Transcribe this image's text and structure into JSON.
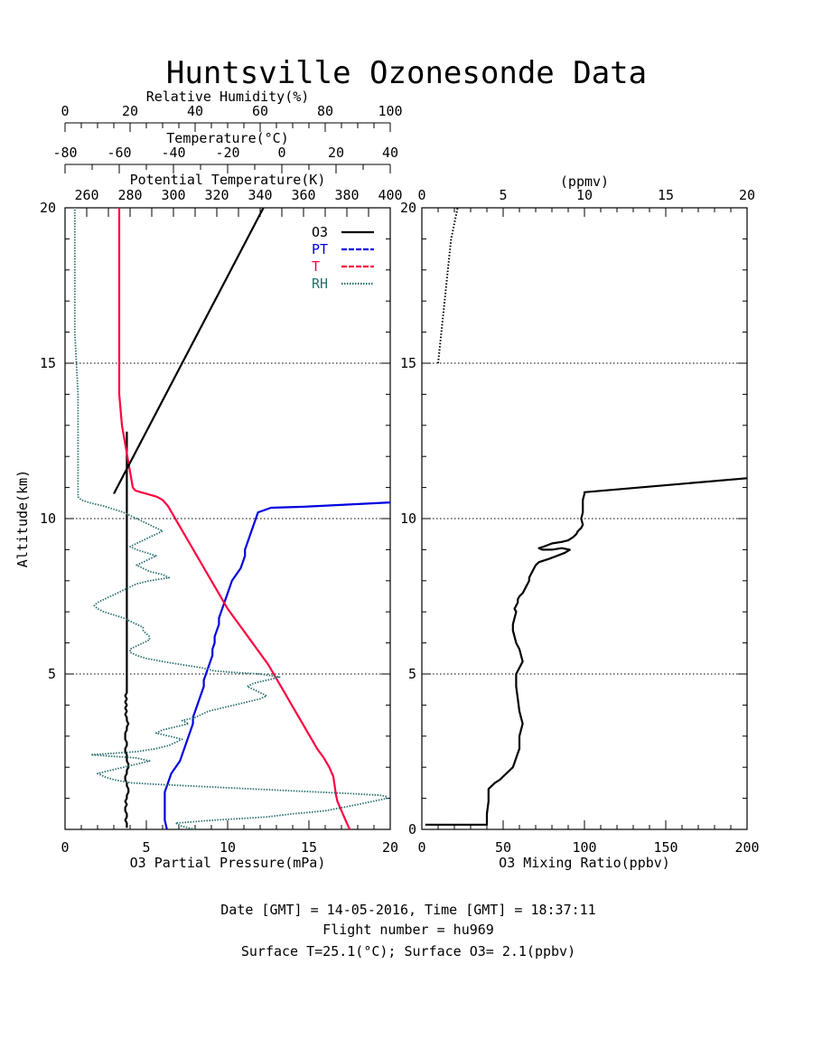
{
  "title": "Huntsville Ozonesonde Data",
  "footer": {
    "line1": "Date [GMT] = 14-05-2016,  Time [GMT] = 18:37:11",
    "line2": "Flight number = hu969",
    "line3": "Surface T=25.1(°C); Surface O3= 2.1(ppbv)"
  },
  "colors": {
    "o3": "#000000",
    "pt": "#0000e0",
    "t": "#ff0040",
    "rh": "#2a7070"
  },
  "chart_data": [
    {
      "type": "line",
      "panel": "left",
      "ylabel": "Altitude(km)",
      "ylim": [
        0,
        20
      ],
      "yticks": [
        "5",
        "10",
        "15",
        "20"
      ],
      "grid_y": [
        5,
        10,
        15
      ],
      "legend": [
        "O3",
        "PT",
        "T",
        "RH"
      ],
      "legend_position": "top-right",
      "axes": {
        "o3": {
          "label": "O3 Partial Pressure(mPa)",
          "lim": [
            0,
            20
          ],
          "ticks": [
            "0",
            "5",
            "10",
            "15",
            "20"
          ]
        },
        "rh": {
          "label": "Relative Humidity(%)",
          "lim": [
            0,
            100
          ],
          "ticks": [
            "0",
            "20",
            "40",
            "60",
            "80",
            "100"
          ]
        },
        "t": {
          "label": "Temperature(°C)",
          "lim": [
            -80,
            40
          ],
          "ticks": [
            "-80",
            "-60",
            "-40",
            "-20",
            "0",
            "20",
            "40"
          ]
        },
        "pt": {
          "label": "Potential Temperature(K)",
          "lim": [
            250,
            400
          ],
          "ticks": [
            "260",
            "280",
            "300",
            "320",
            "340",
            "360",
            "380",
            "400"
          ]
        }
      },
      "series": [
        {
          "name": "O3",
          "axis": "o3",
          "x": [
            3.8,
            3.8,
            3.8,
            3.7,
            3.8,
            3.8,
            3.7,
            3.7,
            3.8,
            3.7,
            3.8,
            3.8,
            3.9,
            3.9,
            3.8,
            3.8,
            3.7,
            3.7,
            3.8,
            3.8,
            3.9,
            3.9,
            3.8,
            3.8,
            3.8,
            3.7,
            3.7,
            3.8,
            3.8,
            3.7,
            3.7,
            3.7,
            3.8,
            3.8,
            3.9,
            3.8,
            3.8,
            3.7,
            3.8,
            3.7,
            3.8,
            3.7,
            3.8,
            3.7,
            3.8,
            3.8,
            3.8,
            3.8,
            3.8,
            3.8,
            3.8,
            3.8,
            3.8,
            3.8,
            3.8,
            3.8,
            3.8,
            3.8,
            3.8,
            3.8,
            3.8,
            3.8,
            3.8,
            3.8,
            3.8,
            3.8,
            3.8,
            3.8,
            3.8,
            3.8,
            3.8,
            3.8,
            3.8,
            3.8,
            3.8,
            3.8,
            3.8,
            3.8,
            3.8,
            3.8,
            3.8,
            3.8,
            3.8,
            3.8,
            3.8,
            3.8,
            3.8,
            3.8,
            3.8,
            3.8,
            3.8,
            3.8,
            3.8,
            3.8,
            3.8,
            3.8,
            3.8,
            3.8,
            3.8,
            3.8,
            3.8,
            3.8,
            3.8,
            3.8,
            3.8,
            3.8,
            3.8,
            3.8,
            3.8,
            3.8,
            3.8,
            3.8,
            3.8,
            3.8,
            3.8,
            3.8,
            3.8,
            3.8,
            3.8,
            3.8,
            3.8,
            3.8,
            3.8,
            3.8,
            3.8,
            3.8,
            3.8,
            3.8,
            3.8
          ],
          "y": [
            0.05,
            0.1,
            0.2,
            0.3,
            0.4,
            0.5,
            0.6,
            0.7,
            0.8,
            0.9,
            1.0,
            1.1,
            1.2,
            1.3,
            1.4,
            1.5,
            1.6,
            1.7,
            1.8,
            1.9,
            2.0,
            2.1,
            2.2,
            2.3,
            2.4,
            2.5,
            2.6,
            2.7,
            2.8,
            2.9,
            3.0,
            3.1,
            3.2,
            3.3,
            3.4,
            3.5,
            3.6,
            3.7,
            3.8,
            3.9,
            4.0,
            4.1,
            4.2,
            4.3,
            4.4,
            4.5,
            4.6,
            4.7,
            4.8,
            4.9,
            5.0,
            5.1,
            5.2,
            5.3,
            5.4,
            5.5,
            5.6,
            5.7,
            5.8,
            5.9,
            6.0,
            6.1,
            6.2,
            6.3,
            6.4,
            6.5,
            6.6,
            6.7,
            6.8,
            6.9,
            7.0,
            7.1,
            7.2,
            7.3,
            7.4,
            7.5,
            7.6,
            7.7,
            7.8,
            7.9,
            8.0,
            8.1,
            8.2,
            8.3,
            8.4,
            8.5,
            8.6,
            8.7,
            8.8,
            8.9,
            9.0,
            9.1,
            9.2,
            9.3,
            9.4,
            9.5,
            9.6,
            9.7,
            9.8,
            9.9,
            10.0,
            10.1,
            10.2,
            10.3,
            10.4,
            10.5,
            10.6,
            10.7,
            10.8,
            10.9,
            11.0,
            11.1,
            11.2,
            11.3,
            11.4,
            11.5,
            11.6,
            11.7,
            11.8,
            11.9,
            12.0,
            12.1,
            12.2,
            12.3,
            12.4,
            12.5,
            12.6,
            12.7,
            12.8
          ]
        },
        {
          "name": "PT",
          "axis": "pt",
          "x": [
            297,
            296,
            296,
            296,
            296,
            297,
            298,
            299,
            301,
            303,
            304,
            305,
            306,
            307,
            308,
            309,
            309,
            310,
            311,
            312,
            313,
            314,
            314,
            315,
            316,
            317,
            318,
            318,
            319,
            319,
            320,
            321,
            321,
            322,
            323,
            324,
            325,
            326,
            327,
            329,
            331,
            332,
            333,
            333,
            334,
            335,
            336,
            337,
            338,
            339,
            345,
            360,
            380,
            400
          ],
          "y": [
            0,
            0.3,
            0.6,
            1.0,
            1.2,
            1.4,
            1.6,
            1.8,
            2.0,
            2.2,
            2.4,
            2.6,
            2.8,
            3.0,
            3.2,
            3.4,
            3.6,
            3.8,
            4.0,
            4.2,
            4.4,
            4.6,
            4.8,
            5.0,
            5.2,
            5.4,
            5.6,
            5.8,
            6.0,
            6.2,
            6.4,
            6.6,
            6.8,
            7.0,
            7.2,
            7.4,
            7.6,
            7.8,
            8.0,
            8.2,
            8.4,
            8.6,
            8.8,
            9.0,
            9.2,
            9.4,
            9.6,
            9.8,
            10.0,
            10.2,
            10.35,
            10.38,
            10.45,
            10.52
          ]
        },
        {
          "name": "T",
          "axis": "t",
          "x": [
            25.1,
            24.5,
            23.5,
            22.5,
            21.5,
            20.5,
            20,
            19.5,
            19,
            17.5,
            15.5,
            13,
            11,
            9,
            7,
            5,
            3,
            1,
            -1,
            -3,
            -5,
            -7.5,
            -10,
            -12.5,
            -15,
            -17.5,
            -20,
            -22,
            -24,
            -26,
            -28,
            -30,
            -32,
            -34,
            -36,
            -38,
            -40,
            -42,
            -44,
            -46,
            -48,
            -50,
            -52,
            -54,
            -55,
            -56,
            -57,
            -59,
            -60,
            -60,
            -60,
            -60,
            -60
          ],
          "y": [
            0.0,
            0.1,
            0.3,
            0.5,
            0.7,
            0.9,
            1.1,
            1.4,
            1.7,
            2.0,
            2.3,
            2.6,
            2.9,
            3.2,
            3.5,
            3.8,
            4.1,
            4.4,
            4.7,
            5.0,
            5.3,
            5.6,
            5.9,
            6.2,
            6.5,
            6.8,
            7.1,
            7.4,
            7.7,
            8.0,
            8.3,
            8.6,
            8.9,
            9.2,
            9.5,
            9.8,
            10.1,
            10.4,
            10.6,
            10.7,
            10.75,
            10.8,
            10.85,
            10.9,
            11.0,
            11.5,
            12,
            13,
            14,
            15,
            16,
            18,
            20
          ]
        },
        {
          "name": "RH",
          "axis": "rh",
          "x": [
            40,
            38,
            36,
            34,
            40,
            46,
            54,
            62,
            70,
            80,
            90,
            99,
            99,
            97,
            88,
            78,
            68,
            58,
            48,
            38,
            28,
            20,
            15,
            12,
            10,
            14,
            18,
            22,
            26,
            22,
            15,
            8,
            15,
            22,
            28,
            32,
            34,
            36,
            32,
            28,
            30,
            34,
            38,
            36,
            40,
            42,
            44,
            48,
            52,
            56,
            60,
            62,
            60,
            58,
            56,
            58,
            62,
            66,
            60,
            52,
            46,
            42,
            36,
            30,
            25,
            22,
            20,
            20,
            22,
            24,
            26,
            26,
            25,
            24,
            24,
            22,
            20,
            18,
            15,
            12,
            10,
            9,
            10,
            12,
            14,
            16,
            18,
            20,
            22,
            26,
            32,
            30,
            26,
            24,
            22,
            24,
            26,
            28,
            25,
            22,
            20,
            22,
            24,
            26,
            28,
            30,
            28,
            26,
            24,
            22,
            20,
            18,
            15,
            12,
            8,
            5,
            4,
            4,
            4,
            4,
            4,
            3,
            3,
            3,
            3
          ],
          "y": [
            0.0,
            0.05,
            0.1,
            0.2,
            0.25,
            0.3,
            0.35,
            0.4,
            0.5,
            0.6,
            0.8,
            1.0,
            1.05,
            1.1,
            1.15,
            1.2,
            1.25,
            1.3,
            1.35,
            1.4,
            1.45,
            1.5,
            1.6,
            1.7,
            1.8,
            1.9,
            2.0,
            2.1,
            2.2,
            2.3,
            2.35,
            2.4,
            2.45,
            2.5,
            2.6,
            2.7,
            2.8,
            2.9,
            3.0,
            3.1,
            3.2,
            3.3,
            3.4,
            3.5,
            3.6,
            3.7,
            3.8,
            3.9,
            4.0,
            4.1,
            4.2,
            4.3,
            4.4,
            4.5,
            4.6,
            4.7,
            4.8,
            4.9,
            5.0,
            5.05,
            5.1,
            5.2,
            5.3,
            5.4,
            5.5,
            5.6,
            5.7,
            5.8,
            5.9,
            6.0,
            6.1,
            6.2,
            6.3,
            6.4,
            6.5,
            6.6,
            6.7,
            6.8,
            6.9,
            7.0,
            7.1,
            7.2,
            7.3,
            7.4,
            7.5,
            7.6,
            7.7,
            7.8,
            7.9,
            8.0,
            8.1,
            8.2,
            8.3,
            8.4,
            8.5,
            8.6,
            8.7,
            8.8,
            8.9,
            9.0,
            9.1,
            9.2,
            9.3,
            9.4,
            9.5,
            9.6,
            9.7,
            9.8,
            9.9,
            10.0,
            10.1,
            10.2,
            10.3,
            10.4,
            10.5,
            10.6,
            10.7,
            10.8,
            11.0,
            12.0,
            14.0,
            16.0,
            18.0,
            19.5,
            20.0
          ]
        }
      ]
    },
    {
      "type": "line",
      "panel": "right",
      "xlabel": "O3 Mixing Ratio(ppbv)",
      "xlim": [
        0,
        200
      ],
      "xticks": [
        "0",
        "50",
        "100",
        "150",
        "200"
      ],
      "x2label": "(ppmv)",
      "x2lim": [
        0,
        20
      ],
      "x2ticks": [
        "0",
        "5",
        "10",
        "15",
        "20"
      ],
      "ylim": [
        0,
        20
      ],
      "yticks": [
        "0",
        "5",
        "10",
        "15",
        "20"
      ],
      "grid_y": [
        5,
        10,
        15
      ],
      "series": [
        {
          "axis": "ppbv",
          "style": "solid",
          "x": [
            2.1,
            20,
            40,
            40,
            41,
            41,
            43,
            45,
            48,
            50,
            52,
            56,
            58,
            60,
            60,
            62,
            60,
            59,
            58,
            58,
            60,
            62,
            61,
            60,
            58,
            57,
            56,
            56,
            57,
            58,
            57,
            58,
            59,
            59,
            60,
            62,
            63,
            64,
            65,
            66,
            66,
            67,
            68,
            69,
            70,
            72,
            75,
            78,
            83,
            88,
            91,
            86,
            80,
            74,
            72,
            75,
            80,
            86,
            90,
            93,
            95,
            96,
            98,
            99,
            98,
            99,
            99,
            99,
            100,
            100,
            200
          ],
          "y": [
            0.15,
            0.15,
            0.15,
            0.5,
            0.9,
            1.3,
            1.4,
            1.5,
            1.6,
            1.7,
            1.8,
            2.0,
            2.3,
            2.6,
            3.0,
            3.4,
            3.8,
            4.2,
            4.6,
            5.0,
            5.2,
            5.4,
            5.6,
            5.8,
            6.0,
            6.2,
            6.4,
            6.6,
            6.8,
            7.0,
            7.1,
            7.2,
            7.3,
            7.4,
            7.5,
            7.6,
            7.7,
            7.8,
            7.9,
            8.0,
            8.1,
            8.2,
            8.3,
            8.4,
            8.5,
            8.6,
            8.65,
            8.7,
            8.8,
            8.9,
            9.0,
            9.05,
            9.0,
            9.0,
            9.05,
            9.1,
            9.2,
            9.25,
            9.3,
            9.4,
            9.5,
            9.6,
            9.7,
            9.8,
            10.0,
            10.2,
            10.4,
            10.6,
            10.8,
            10.85,
            11.3
          ]
        },
        {
          "axis": "ppmv",
          "style": "dotted",
          "x": [
            1.0,
            1.2,
            1.4,
            1.6,
            1.8,
            2.0,
            2.2
          ],
          "y": [
            15.0,
            16.0,
            17.0,
            18.0,
            19.0,
            19.5,
            20.0
          ]
        }
      ]
    }
  ]
}
